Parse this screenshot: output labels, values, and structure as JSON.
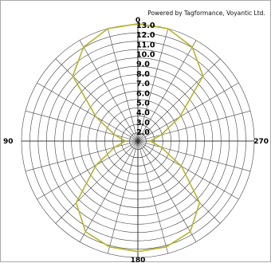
{
  "watermark": "Powered by Tagformance, Voyantic Ltd.",
  "chart_data": {
    "type": "polar-line",
    "angle_labels": [
      "0",
      "90",
      "180",
      "270"
    ],
    "angle_direction": "counterclockwise",
    "radial_range": [
      2.0,
      13.0
    ],
    "radial_ticks": [
      "2.0",
      "3.0",
      "4.0",
      "5.0",
      "6.0",
      "7.0",
      "8.0",
      "9.0",
      "10.0",
      "11.0",
      "12.0",
      "13.0"
    ],
    "grid": true,
    "series_color": "#b8b42a",
    "angles": [
      0,
      15,
      30,
      45,
      60,
      75,
      90,
      105,
      120,
      135,
      150,
      165,
      180,
      195,
      210,
      225,
      240,
      255,
      270,
      285,
      300,
      315,
      330,
      345
    ],
    "values": [
      13.1,
      13.0,
      12.2,
      10.5,
      6.0,
      3.5,
      2.3,
      3.5,
      6.0,
      10.0,
      11.8,
      12.3,
      12.4,
      12.3,
      11.8,
      10.0,
      6.2,
      3.5,
      2.3,
      3.5,
      6.0,
      10.5,
      12.2,
      13.0
    ]
  }
}
